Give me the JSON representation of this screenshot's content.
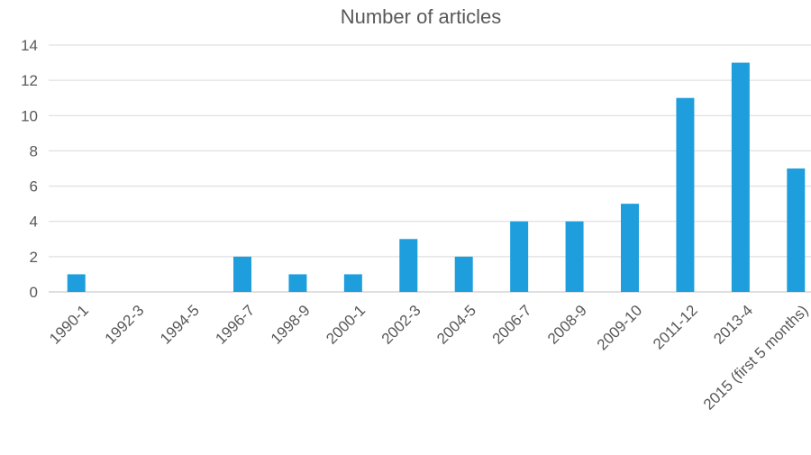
{
  "chart_data": {
    "type": "bar",
    "title": "Number of articles",
    "xlabel": "",
    "ylabel": "",
    "categories": [
      "1990-1",
      "1992-3",
      "1994-5",
      "1996-7",
      "1998-9",
      "2000-1",
      "2002-3",
      "2004-5",
      "2006-7",
      "2008-9",
      "2009-10",
      "2011-12",
      "2013-4",
      "2015 (first 5 months)"
    ],
    "values": [
      1,
      0,
      0,
      2,
      1,
      1,
      3,
      2,
      4,
      4,
      5,
      11,
      13,
      7
    ],
    "ylim": [
      0,
      14
    ],
    "yticks": [
      "0",
      "2",
      "4",
      "6",
      "8",
      "10",
      "12",
      "14"
    ],
    "grid": true,
    "legend": "none",
    "bar_color": "#1f9ede"
  }
}
